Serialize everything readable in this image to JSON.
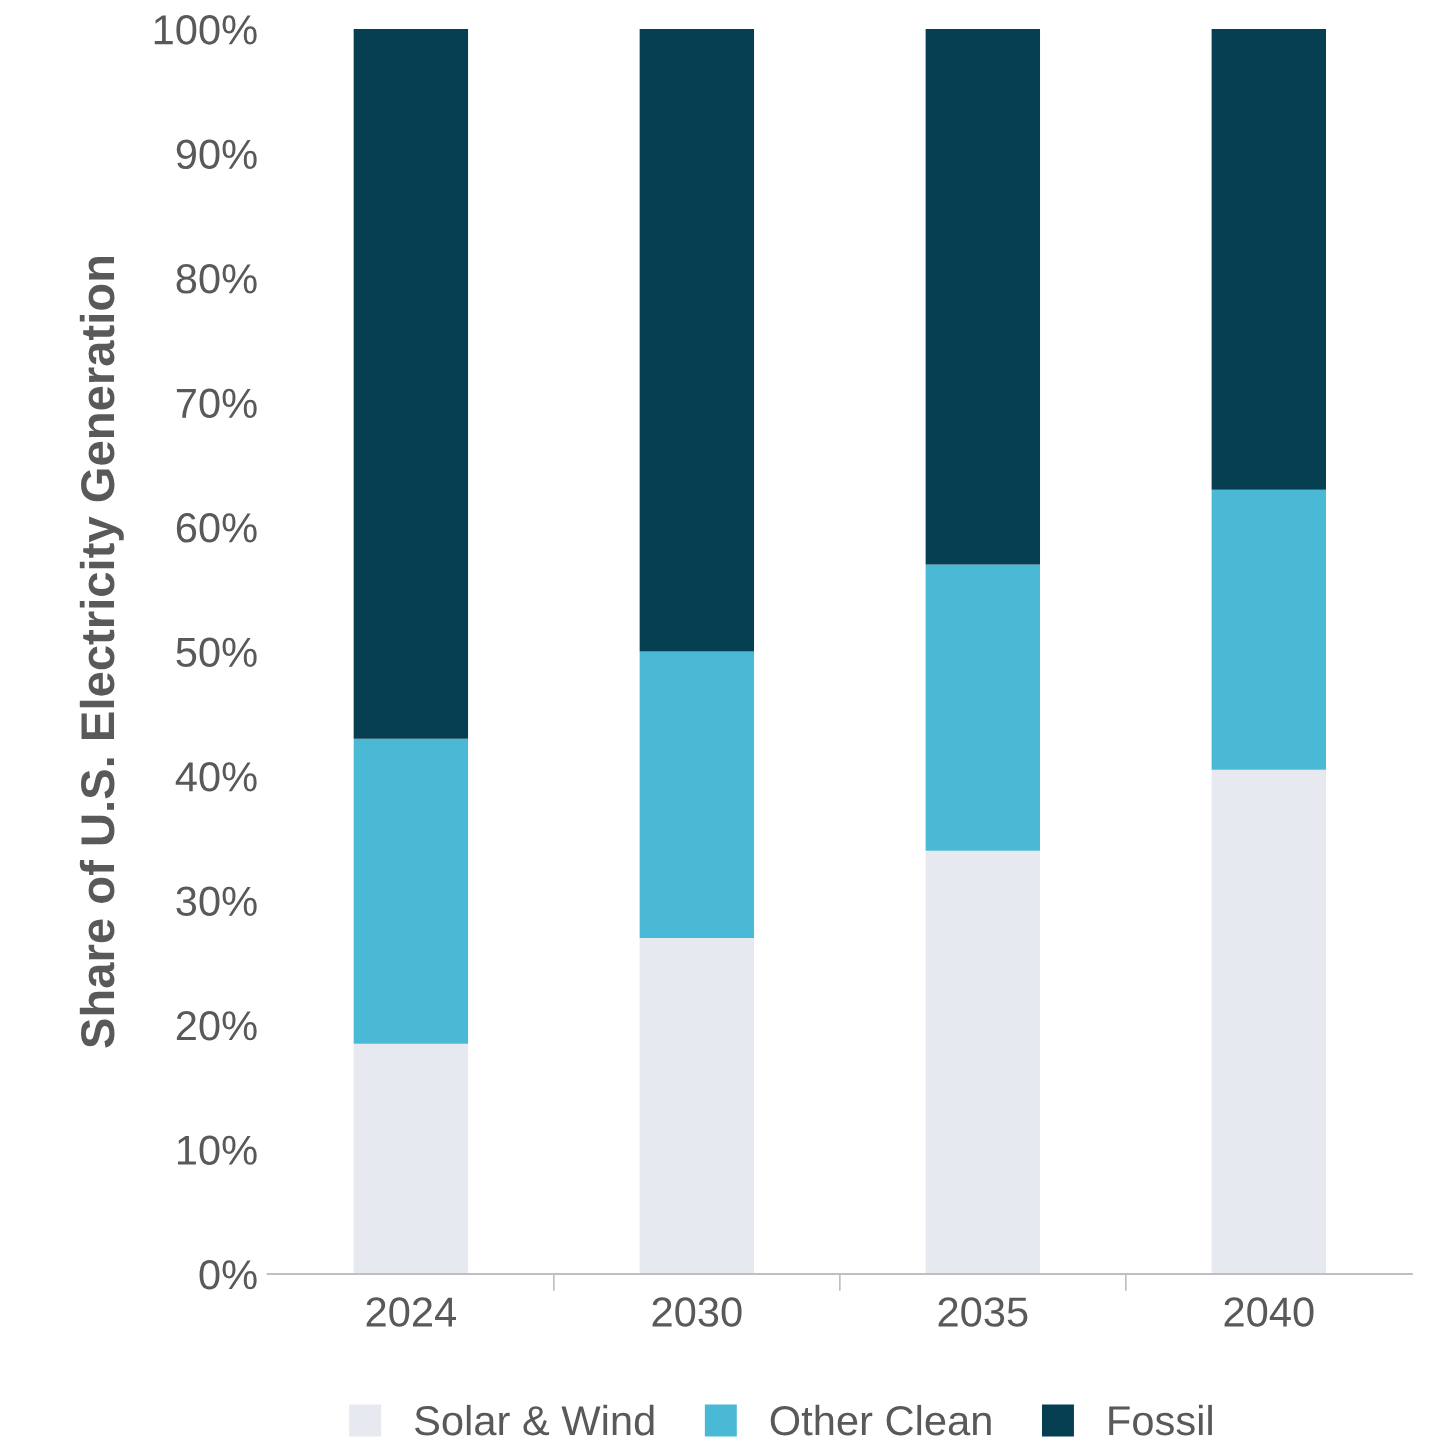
{
  "chart_data": {
    "type": "bar",
    "ylabel": "Share of U.S. Electricity Generation",
    "categories": [
      "2024",
      "2030",
      "2035",
      "2040"
    ],
    "stacked": true,
    "series": [
      {
        "name": "Solar & Wind",
        "color": "#e6e9f0",
        "values": [
          18.5,
          27,
          34,
          40.5
        ]
      },
      {
        "name": "Other Clean",
        "color": "#4ab9d6",
        "values": [
          24.5,
          23,
          23,
          22.5
        ]
      },
      {
        "name": "Fossil",
        "color": "#063f52",
        "values": [
          57,
          50,
          43,
          37
        ]
      }
    ],
    "ylim": [
      0,
      100
    ],
    "yticks": [
      {
        "value": 0,
        "label": "0%"
      },
      {
        "value": 10,
        "label": "10%"
      },
      {
        "value": 20,
        "label": "20%"
      },
      {
        "value": 30,
        "label": "30%"
      },
      {
        "value": 40,
        "label": "40%"
      },
      {
        "value": 50,
        "label": "50%"
      },
      {
        "value": 60,
        "label": "60%"
      },
      {
        "value": 70,
        "label": "70%"
      },
      {
        "value": 80,
        "label": "80%"
      },
      {
        "value": 90,
        "label": "90%"
      },
      {
        "value": 100,
        "label": "100%"
      }
    ],
    "grid": false,
    "legend": "bottom"
  }
}
